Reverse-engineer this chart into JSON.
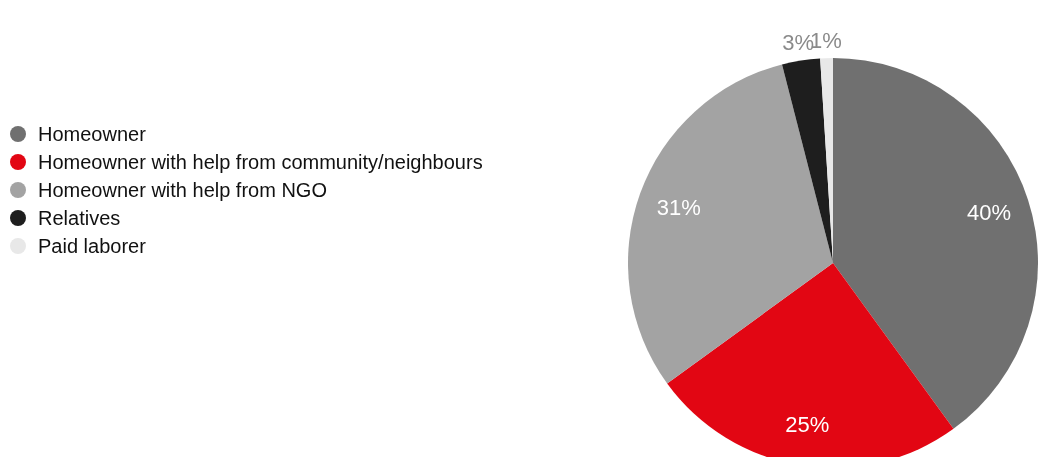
{
  "chart_data": {
    "type": "pie",
    "categories": [
      "Homeowner",
      "Homeowner with help from community/neighbours",
      "Homeowner with help from NGO",
      "Relatives",
      "Paid laborer"
    ],
    "values": [
      40,
      25,
      31,
      3,
      1
    ],
    "value_labels": [
      "40%",
      "25%",
      "31%",
      "3%",
      "1%"
    ],
    "colors": [
      "#707070",
      "#e20613",
      "#a3a3a3",
      "#1e1e1e",
      "#e8e8e8"
    ],
    "legend": "left"
  }
}
